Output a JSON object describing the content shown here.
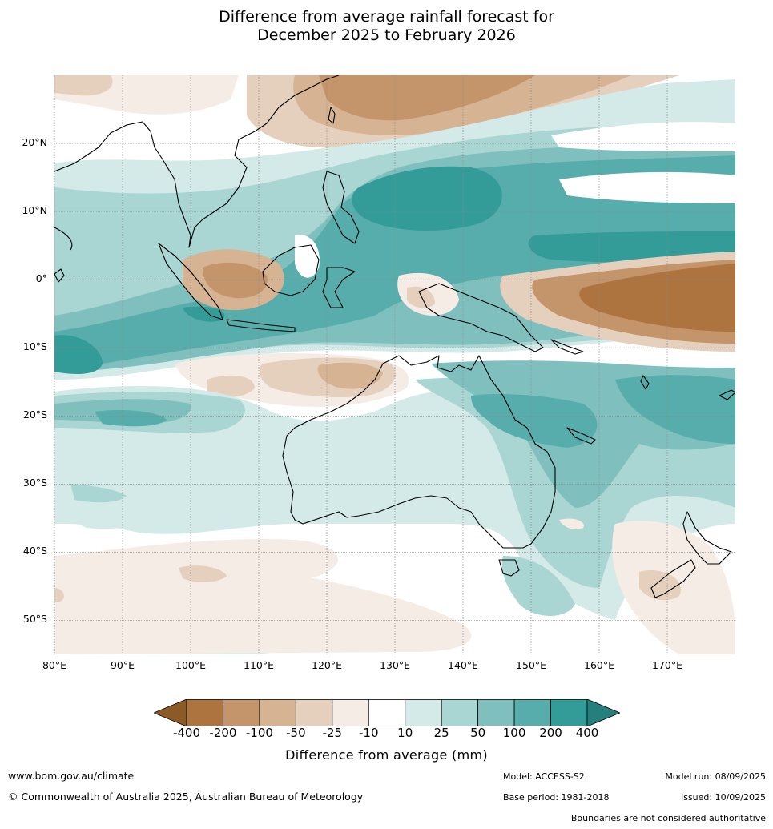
{
  "title": {
    "line1": "Difference from average rainfall forecast for",
    "line2": "December 2025 to February 2026"
  },
  "map": {
    "lat_labels": [
      "20°N",
      "10°N",
      "0°",
      "10°S",
      "20°S",
      "30°S",
      "40°S",
      "50°S"
    ],
    "lon_labels": [
      "80°E",
      "90°E",
      "100°E",
      "110°E",
      "120°E",
      "130°E",
      "140°E",
      "150°E",
      "160°E",
      "170°E"
    ],
    "extent": {
      "lon": [
        80,
        180
      ],
      "lat": [
        -55,
        30
      ]
    }
  },
  "legend": {
    "ticks": [
      "-400",
      "-200",
      "-100",
      "-50",
      "-25",
      "-10",
      "10",
      "25",
      "50",
      "100",
      "200",
      "400"
    ],
    "colors": [
      "#8c5a26",
      "#ad7440",
      "#c4946a",
      "#d5b393",
      "#e5d0bd",
      "#f5ece6",
      "#ffffff",
      "#d4eae8",
      "#a9d5d3",
      "#7fbfbd",
      "#57adab",
      "#339c99",
      "#257f7c"
    ],
    "label": "Difference from average (mm)"
  },
  "footer": {
    "website": "www.bom.gov.au/climate",
    "copyright": "© Commonwealth of Australia 2025, Australian Bureau of Meteorology",
    "model": "Model: ACCESS-S2",
    "base_period": "Base period: 1981-2018",
    "model_run": "Model run: 08/09/2025",
    "issued": "Issued: 10/09/2025",
    "disclaimer": "Boundaries are not considered authoritative"
  }
}
